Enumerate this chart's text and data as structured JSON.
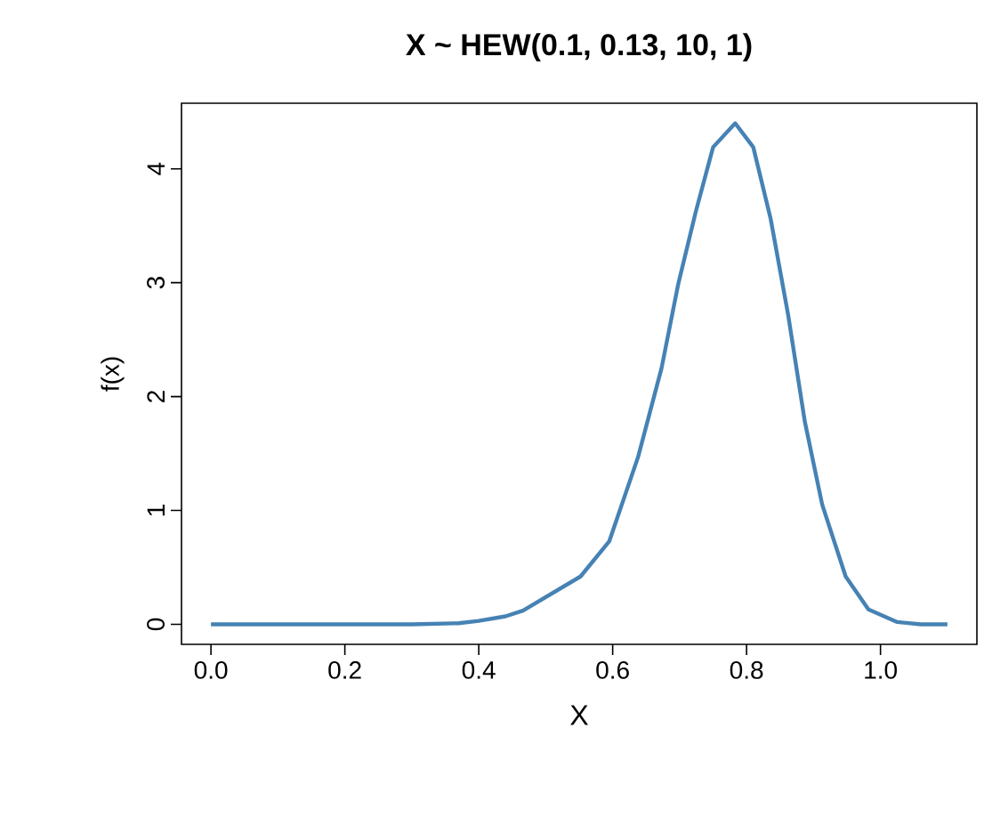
{
  "chart_data": {
    "type": "line",
    "title": "X ~ HEW(0.1, 0.13, 10, 1)",
    "xlabel": "X",
    "ylabel": "f(x)",
    "xlim": [
      -0.044,
      1.144
    ],
    "ylim": [
      -0.176,
      4.576
    ],
    "xticks": [
      {
        "value": 0,
        "label": "0.0"
      },
      0.2,
      0.4,
      0.6,
      0.8,
      {
        "value": 1,
        "label": "1.0"
      }
    ],
    "yticks": [
      0,
      1,
      2,
      3,
      4
    ],
    "grid": false,
    "marker": "none",
    "line_style": "solid",
    "series": [
      {
        "color": "#4682b4",
        "x": [
          0,
          0.1,
          0.2,
          0.3,
          0.37,
          0.4,
          0.44,
          0.466,
          0.552,
          0.595,
          0.638,
          0.673,
          0.698,
          0.724,
          0.75,
          0.783,
          0.81,
          0.836,
          0.862,
          0.887,
          0.913,
          0.948,
          0.982,
          1.025,
          1.06,
          1.1
        ],
        "values": [
          0,
          0,
          0,
          0,
          0.01,
          0.03,
          0.07,
          0.12,
          0.42,
          0.73,
          1.47,
          2.25,
          2.99,
          3.62,
          4.19,
          4.4,
          4.19,
          3.56,
          2.72,
          1.78,
          1.05,
          0.42,
          0.13,
          0.02,
          0,
          0
        ]
      }
    ]
  }
}
